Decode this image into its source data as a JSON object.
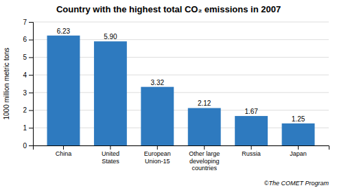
{
  "chart_data": {
    "type": "bar",
    "title": "Country with the highest total CO₂ emissions in 2007",
    "categories": [
      "China",
      "United\nStates",
      "European\nUnion-15",
      "Other large\ndeveloping\ncountries",
      "Russia",
      "Japan"
    ],
    "values": [
      6.23,
      5.9,
      3.32,
      2.12,
      1.67,
      1.25
    ],
    "value_labels": [
      "6.23",
      "5.90",
      "3.32",
      "2.12",
      "1.67",
      "1.25"
    ],
    "data_labels": true,
    "color": "#2e7abf",
    "ylabel": "1000 million metric tons",
    "annotation": "©The COMET Program",
    "ylim": [
      0,
      7
    ],
    "yticks": [
      0,
      1,
      2,
      3,
      4,
      5,
      6,
      7
    ],
    "grid": true
  }
}
